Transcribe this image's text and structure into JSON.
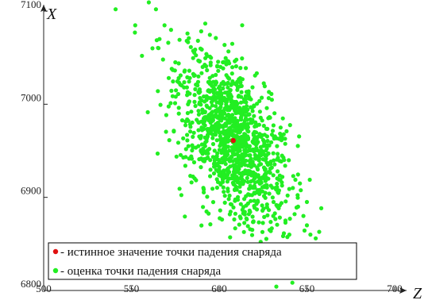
{
  "chart_data": {
    "type": "scatter",
    "xlabel": "Z",
    "ylabel": "X",
    "xlim": [
      500,
      700
    ],
    "ylim": [
      6800,
      7100
    ],
    "x_ticks": [
      500,
      550,
      600,
      650,
      700
    ],
    "y_ticks": [
      6800,
      6900,
      7000,
      7100
    ],
    "grid": false,
    "legend_position": "bottom-left",
    "series": [
      {
        "name": "истинное значение точки падения снаряда",
        "label": "- истинное значение точки падения снаряда",
        "color": "#e01010",
        "points": [
          {
            "x": 608,
            "y": 6961
          }
        ]
      },
      {
        "name": "оценка точки падения снаряда",
        "label": "- оценка точки падения снаряда",
        "color": "#22ee22",
        "points": [
          {
            "x": 541,
            "y": 7102
          },
          {
            "x": 564,
            "y": 7102
          },
          {
            "x": 552,
            "y": 7077
          },
          {
            "x": 556,
            "y": 7052
          },
          {
            "x": 562,
            "y": 7060
          },
          {
            "x": 566,
            "y": 7070
          },
          {
            "x": 568,
            "y": 7048
          },
          {
            "x": 571,
            "y": 7066
          },
          {
            "x": 573,
            "y": 7038
          },
          {
            "x": 575,
            "y": 7045
          },
          {
            "x": 578,
            "y": 7031
          },
          {
            "x": 580,
            "y": 7018
          },
          {
            "x": 583,
            "y": 7036
          },
          {
            "x": 586,
            "y": 7010
          },
          {
            "x": 588,
            "y": 7024
          },
          {
            "x": 590,
            "y": 7004
          },
          {
            "x": 592,
            "y": 6992
          },
          {
            "x": 594,
            "y": 7015
          },
          {
            "x": 596,
            "y": 6982
          },
          {
            "x": 598,
            "y": 6998
          },
          {
            "x": 600,
            "y": 6975
          },
          {
            "x": 602,
            "y": 6990
          },
          {
            "x": 604,
            "y": 6966
          },
          {
            "x": 606,
            "y": 6980
          },
          {
            "x": 609,
            "y": 6955
          },
          {
            "x": 611,
            "y": 6970
          },
          {
            "x": 613,
            "y": 6946
          },
          {
            "x": 615,
            "y": 6960
          },
          {
            "x": 618,
            "y": 6938
          },
          {
            "x": 620,
            "y": 6950
          },
          {
            "x": 622,
            "y": 6930
          },
          {
            "x": 625,
            "y": 6941
          },
          {
            "x": 628,
            "y": 6920
          },
          {
            "x": 630,
            "y": 6932
          },
          {
            "x": 633,
            "y": 6911
          },
          {
            "x": 636,
            "y": 6922
          },
          {
            "x": 639,
            "y": 6902
          },
          {
            "x": 642,
            "y": 6910
          },
          {
            "x": 645,
            "y": 6890
          },
          {
            "x": 648,
            "y": 6880
          },
          {
            "x": 650,
            "y": 6870
          },
          {
            "x": 652,
            "y": 6860
          },
          {
            "x": 655,
            "y": 6856
          },
          {
            "x": 646,
            "y": 6849
          },
          {
            "x": 640,
            "y": 6860
          },
          {
            "x": 657,
            "y": 6863
          },
          {
            "x": 612,
            "y": 7028
          },
          {
            "x": 609,
            "y": 7022
          },
          {
            "x": 585,
            "y": 6965
          },
          {
            "x": 592,
            "y": 6955
          },
          {
            "x": 628,
            "y": 6985
          },
          {
            "x": 635,
            "y": 6975
          },
          {
            "x": 577,
            "y": 6990
          },
          {
            "x": 600,
            "y": 6940
          },
          {
            "x": 620,
            "y": 6905
          },
          {
            "x": 631,
            "y": 6895
          },
          {
            "x": 646,
            "y": 6915
          },
          {
            "x": 597,
            "y": 7012
          },
          {
            "x": 615,
            "y": 6995
          },
          {
            "x": 605,
            "y": 6930
          },
          {
            "x": 583,
            "y": 7003
          },
          {
            "x": 590,
            "y": 6975
          },
          {
            "x": 624,
            "y": 6965
          },
          {
            "x": 637,
            "y": 6940
          },
          {
            "x": 650,
            "y": 6895
          },
          {
            "x": 643,
            "y": 6882
          },
          {
            "x": 609,
            "y": 6985
          },
          {
            "x": 617,
            "y": 6945
          },
          {
            "x": 601,
            "y": 6958
          },
          {
            "x": 594,
            "y": 6970
          },
          {
            "x": 626,
            "y": 6930
          },
          {
            "x": 633,
            "y": 6955
          }
        ]
      }
    ]
  }
}
